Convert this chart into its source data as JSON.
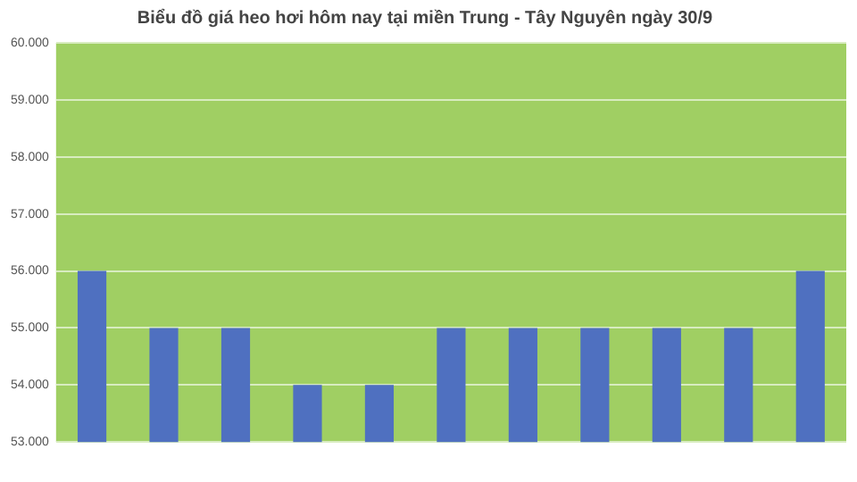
{
  "chart_data": {
    "type": "bar",
    "title": "Biểu đồ giá heo hơi hôm nay tại miền Trung - Tây Nguyên ngày 30/9",
    "categories": [
      null,
      null,
      null,
      null,
      null,
      null,
      null,
      null,
      null,
      null,
      null
    ],
    "values": [
      56000,
      55000,
      55000,
      54000,
      54000,
      55000,
      55000,
      55000,
      55000,
      55000,
      56000
    ],
    "color": "#4f70c0",
    "ylim": [
      53000,
      60000
    ],
    "yticks": [
      {
        "value": 53000,
        "label": "53.000"
      },
      {
        "value": 54000,
        "label": "54.000"
      },
      {
        "value": 55000,
        "label": "55.000"
      },
      {
        "value": 56000,
        "label": "56.000"
      },
      {
        "value": 57000,
        "label": "57.000"
      },
      {
        "value": 58000,
        "label": "58.000"
      },
      {
        "value": 59000,
        "label": "59.000"
      },
      {
        "value": 60000,
        "label": "60.000"
      }
    ],
    "grid": "y"
  }
}
